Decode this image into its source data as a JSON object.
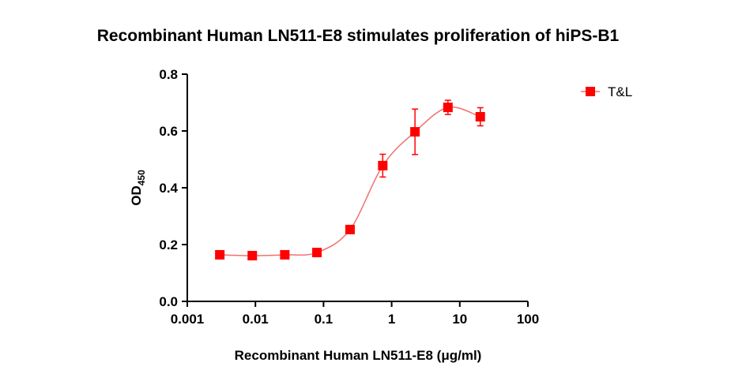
{
  "chart_data": {
    "type": "scatter",
    "title": "Recombinant Human LN511-E8 stimulates proliferation of hiPS-B1",
    "xlabel": "Recombinant Human LN511-E8   (μg/ml)",
    "ylabel": "OD",
    "ylabel_sub": "450",
    "xscale": "log",
    "xlim": [
      0.001,
      100
    ],
    "xticks": [
      0.001,
      0.01,
      0.1,
      1,
      10,
      100
    ],
    "ylim": [
      0,
      0.8
    ],
    "yticks": [
      {
        "value": 0,
        "label": "0.0"
      },
      0.2,
      0.4,
      0.6,
      0.8
    ],
    "legend": "top-right",
    "fit_curve": true,
    "series": [
      {
        "name": "T&L",
        "color": "#ff0000",
        "line_color": "#f07070",
        "x": [
          0.003,
          0.009,
          0.027,
          0.08,
          0.245,
          0.74,
          2.2,
          6.7,
          20
        ],
        "values": [
          0.164,
          0.161,
          0.164,
          0.172,
          0.253,
          0.478,
          0.597,
          0.683,
          0.65
        ],
        "errors": [
          0.004,
          0.004,
          0.005,
          0.006,
          0.006,
          0.04,
          0.08,
          0.025,
          0.032
        ]
      }
    ]
  }
}
